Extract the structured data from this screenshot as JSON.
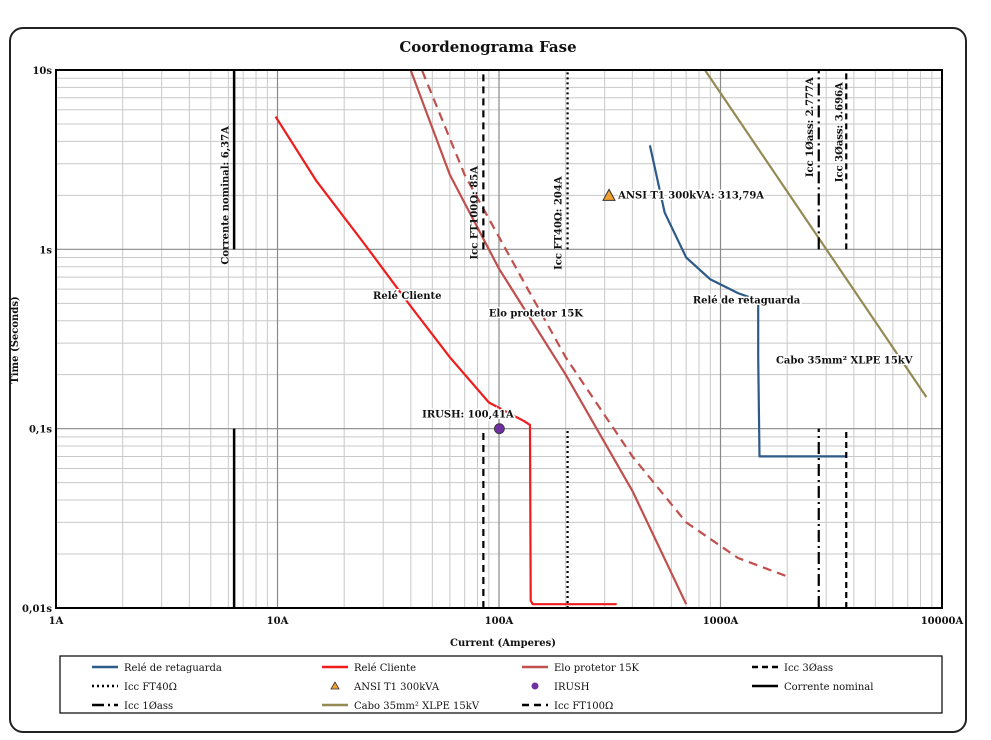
{
  "chart_data": {
    "type": "line",
    "title": "Coordenograma Fase",
    "xlabel": "Current (Amperes)",
    "ylabel": "Time (Seconds)",
    "x_scale": "log",
    "y_scale": "log",
    "xlim": [
      1,
      10000
    ],
    "ylim": [
      0.01,
      10
    ],
    "x_ticks": [
      {
        "v": 1,
        "label": "1A"
      },
      {
        "v": 10,
        "label": "10A"
      },
      {
        "v": 100,
        "label": "100A"
      },
      {
        "v": 1000,
        "label": "1000A"
      },
      {
        "v": 10000,
        "label": "10000A"
      }
    ],
    "y_ticks": [
      {
        "v": 10,
        "label": "10s"
      },
      {
        "v": 1,
        "label": "1s"
      },
      {
        "v": 0.1,
        "label": "0,1s"
      },
      {
        "v": 0.01,
        "label": "0,01s"
      }
    ],
    "grid": true,
    "series": [
      {
        "name": "Relé de retaguarda",
        "color": "#2e5a87",
        "style": "solid",
        "points": [
          [
            480,
            3.8
          ],
          [
            560,
            1.6
          ],
          [
            700,
            0.9
          ],
          [
            900,
            0.68
          ],
          [
            1200,
            0.57
          ],
          [
            1480,
            0.52
          ],
          [
            1480,
            0.25
          ],
          [
            1500,
            0.07
          ],
          [
            3700,
            0.07
          ]
        ]
      },
      {
        "name": "Relé Cliente",
        "color": "#ee1c1c",
        "style": "solid",
        "points": [
          [
            9.8,
            5.5
          ],
          [
            15,
            2.4
          ],
          [
            25,
            1.05
          ],
          [
            40,
            0.48
          ],
          [
            60,
            0.25
          ],
          [
            90,
            0.14
          ],
          [
            130,
            0.11
          ],
          [
            138,
            0.105
          ],
          [
            139,
            0.011
          ],
          [
            142,
            0.0105
          ],
          [
            340,
            0.0105
          ]
        ]
      },
      {
        "name": "Elo protetor  15K",
        "color": "#c0504d",
        "style": "solid",
        "points": [
          [
            40,
            9.9
          ],
          [
            60,
            2.6
          ],
          [
            100,
            0.78
          ],
          [
            200,
            0.2
          ],
          [
            400,
            0.045
          ],
          [
            700,
            0.0105
          ]
        ]
      },
      {
        "name": "Elo protetor 15K (curva tracejada)",
        "color": "#c0504d",
        "style": "dashed",
        "points": [
          [
            45,
            9.9
          ],
          [
            70,
            2.6
          ],
          [
            120,
            0.78
          ],
          [
            200,
            0.25
          ],
          [
            400,
            0.07
          ],
          [
            700,
            0.03
          ],
          [
            1200,
            0.019
          ],
          [
            2000,
            0.015
          ]
        ]
      },
      {
        "name": "Cabo 35mm² XLPE 15kV",
        "color": "#948a54",
        "style": "solid",
        "points": [
          [
            850,
            10
          ],
          [
            8500,
            0.15
          ]
        ]
      },
      {
        "name": "Corrente nominal",
        "color": "#000000",
        "style": "solid",
        "vline": 6.37,
        "segments": [
          [
            0.01,
            0.1
          ],
          [
            1,
            10
          ]
        ]
      },
      {
        "name": "Icc FT100Ω",
        "color": "#000000",
        "style": "dash",
        "vline": 85,
        "segments": [
          [
            0.01,
            0.1
          ],
          [
            1,
            10
          ]
        ]
      },
      {
        "name": "Icc FT40Ω",
        "color": "#000000",
        "style": "dotted",
        "vline": 204,
        "segments": [
          [
            0.01,
            0.1
          ],
          [
            1,
            10
          ]
        ]
      },
      {
        "name": "Icc 1Øass",
        "color": "#000000",
        "style": "dashdot",
        "vline": 2777,
        "segments": [
          [
            0.01,
            0.1
          ],
          [
            1,
            10
          ]
        ]
      },
      {
        "name": "Icc 3Øass",
        "color": "#000000",
        "style": "shortdash",
        "vline": 3696,
        "segments": [
          [
            0.01,
            0.1
          ],
          [
            1,
            10
          ]
        ]
      }
    ],
    "markers": [
      {
        "name": "ANSI T1 300kVA",
        "shape": "triangle",
        "x": 313.79,
        "y": 2.0,
        "color": "#f0a030"
      },
      {
        "name": "IRUSH",
        "shape": "circle",
        "x": 100.41,
        "y": 0.1,
        "color": "#7030a0"
      }
    ],
    "annotations": [
      {
        "text": "Corrente nominal: 6,37A",
        "x": 6.0,
        "y": 2.0,
        "rotate": true
      },
      {
        "text": "Icc FT100Ω: 85A",
        "x": 80,
        "y": 1.6,
        "rotate": true
      },
      {
        "text": "Icc FT40Ω: 204A",
        "x": 192,
        "y": 1.4,
        "rotate": true
      },
      {
        "text": "Icc 1Øass: 2.777A",
        "x": 2620,
        "y": 4.8,
        "rotate": true
      },
      {
        "text": "Icc 3Øass: 3.696A",
        "x": 3550,
        "y": 4.5,
        "rotate": true
      },
      {
        "text": "ANSI T1 300kVA: 313,79A",
        "x": 345,
        "y": 2.0,
        "rotate": false
      },
      {
        "text": "Relé Cliente",
        "x": 27,
        "y": 0.55,
        "rotate": false
      },
      {
        "text": "Elo protetor  15K",
        "x": 90,
        "y": 0.44,
        "rotate": false
      },
      {
        "text": "Relé de retaguarda",
        "x": 750,
        "y": 0.52,
        "rotate": false
      },
      {
        "text": "IRUSH: 100,41A",
        "x": 45,
        "y": 0.12,
        "rotate": false
      },
      {
        "text": "Cabo 35mm² XLPE 15kV",
        "x": 1780,
        "y": 0.24,
        "rotate": false
      }
    ],
    "legend": {
      "placement": "bottom",
      "entries": [
        {
          "label": "Relé de retaguarda",
          "color": "#2e5a87",
          "style": "solid"
        },
        {
          "label": "Relé Cliente",
          "color": "#ee1c1c",
          "style": "solid"
        },
        {
          "label": "Elo protetor  15K",
          "color": "#c0504d",
          "style": "solid"
        },
        {
          "label": "Icc 3Øass",
          "color": "#000000",
          "style": "shortdash"
        },
        {
          "label": "Icc FT40Ω",
          "color": "#000000",
          "style": "dotted"
        },
        {
          "label": "ANSI T1 300kVA",
          "color": "#f0a030",
          "style": "triangle"
        },
        {
          "label": "IRUSH",
          "color": "#7030a0",
          "style": "circle"
        },
        {
          "label": "Corrente nominal",
          "color": "#000000",
          "style": "solid"
        },
        {
          "label": "Icc 1Øass",
          "color": "#000000",
          "style": "dashdot"
        },
        {
          "label": "Cabo 35mm² XLPE 15kV",
          "color": "#948a54",
          "style": "solid"
        },
        {
          "label": "Icc FT100Ω",
          "color": "#000000",
          "style": "dash"
        }
      ]
    }
  }
}
